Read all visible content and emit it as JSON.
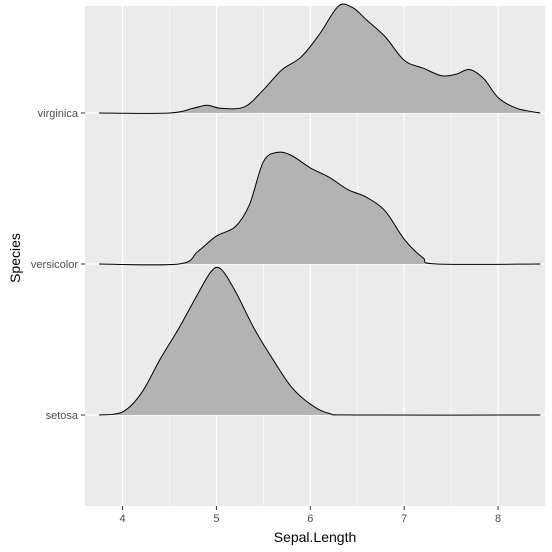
{
  "chart_data": {
    "type": "ridgeline",
    "xlabel": "Sepal.Length",
    "ylabel": "Species",
    "xlim": [
      3.6,
      8.5
    ],
    "x_ticks": [
      "4",
      "5",
      "6",
      "7",
      "8"
    ],
    "grid": true,
    "fill_color": "#b3b3b3",
    "line_color": "#000000",
    "panel_color": "#ebebeb",
    "grid_color": "#ffffff",
    "series": [
      {
        "name": "setosa",
        "points": [
          [
            3.75,
            0.0
          ],
          [
            4.0,
            0.02
          ],
          [
            4.2,
            0.14
          ],
          [
            4.4,
            0.36
          ],
          [
            4.6,
            0.56
          ],
          [
            4.8,
            0.78
          ],
          [
            4.95,
            0.93
          ],
          [
            5.05,
            0.94
          ],
          [
            5.2,
            0.8
          ],
          [
            5.4,
            0.56
          ],
          [
            5.6,
            0.36
          ],
          [
            5.8,
            0.18
          ],
          [
            6.0,
            0.07
          ],
          [
            6.2,
            0.01
          ],
          [
            6.5,
            0.0
          ],
          [
            8.45,
            0.0
          ]
        ]
      },
      {
        "name": "versicolor",
        "points": [
          [
            3.75,
            0.0
          ],
          [
            4.6,
            0.0
          ],
          [
            4.8,
            0.08
          ],
          [
            5.0,
            0.18
          ],
          [
            5.2,
            0.24
          ],
          [
            5.35,
            0.38
          ],
          [
            5.5,
            0.66
          ],
          [
            5.65,
            0.72
          ],
          [
            5.8,
            0.7
          ],
          [
            6.0,
            0.62
          ],
          [
            6.2,
            0.56
          ],
          [
            6.4,
            0.48
          ],
          [
            6.6,
            0.43
          ],
          [
            6.8,
            0.34
          ],
          [
            7.0,
            0.16
          ],
          [
            7.2,
            0.04
          ],
          [
            7.35,
            0.0
          ],
          [
            8.45,
            0.0
          ]
        ]
      },
      {
        "name": "virginica",
        "points": [
          [
            3.75,
            0.0
          ],
          [
            4.5,
            0.0
          ],
          [
            4.75,
            0.03
          ],
          [
            4.9,
            0.05
          ],
          [
            5.05,
            0.03
          ],
          [
            5.3,
            0.04
          ],
          [
            5.5,
            0.15
          ],
          [
            5.7,
            0.28
          ],
          [
            5.9,
            0.36
          ],
          [
            6.1,
            0.51
          ],
          [
            6.3,
            0.69
          ],
          [
            6.45,
            0.68
          ],
          [
            6.6,
            0.6
          ],
          [
            6.8,
            0.49
          ],
          [
            7.0,
            0.34
          ],
          [
            7.2,
            0.29
          ],
          [
            7.4,
            0.24
          ],
          [
            7.55,
            0.25
          ],
          [
            7.7,
            0.28
          ],
          [
            7.85,
            0.22
          ],
          [
            8.0,
            0.1
          ],
          [
            8.2,
            0.03
          ],
          [
            8.45,
            0.0
          ]
        ]
      }
    ]
  }
}
